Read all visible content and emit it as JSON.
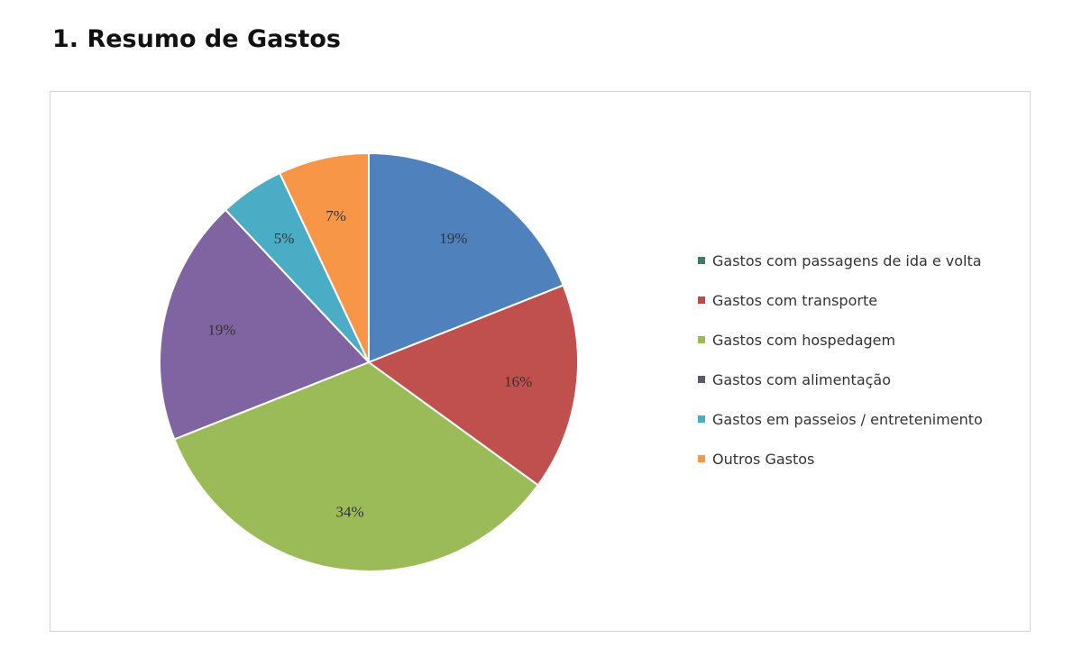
{
  "page": {
    "title": "1. Resumo de Gastos"
  },
  "chart_data": {
    "type": "pie",
    "title": "",
    "categories": [
      "Gastos com passagens de ida e volta",
      "Gastos com transporte",
      "Gastos com hospedagem",
      "Gastos com alimentação",
      "Gastos em passeios / entretenimento",
      "Outros Gastos"
    ],
    "values": [
      19,
      16,
      34,
      19,
      5,
      7
    ],
    "slice_labels": [
      "19%",
      "16%",
      "34%",
      "19%",
      "5%",
      "7%"
    ],
    "slice_colors": [
      "#4f81bd",
      "#c0504d",
      "#9bbb59",
      "#8064a2",
      "#4bacc6",
      "#f79646"
    ],
    "legend_colors": [
      "#3d7a6b",
      "#b84a4a",
      "#9bbb59",
      "#5a5a66",
      "#4bacc6",
      "#f79646"
    ],
    "legend_position": "right",
    "start_angle": "top, clockwise"
  }
}
